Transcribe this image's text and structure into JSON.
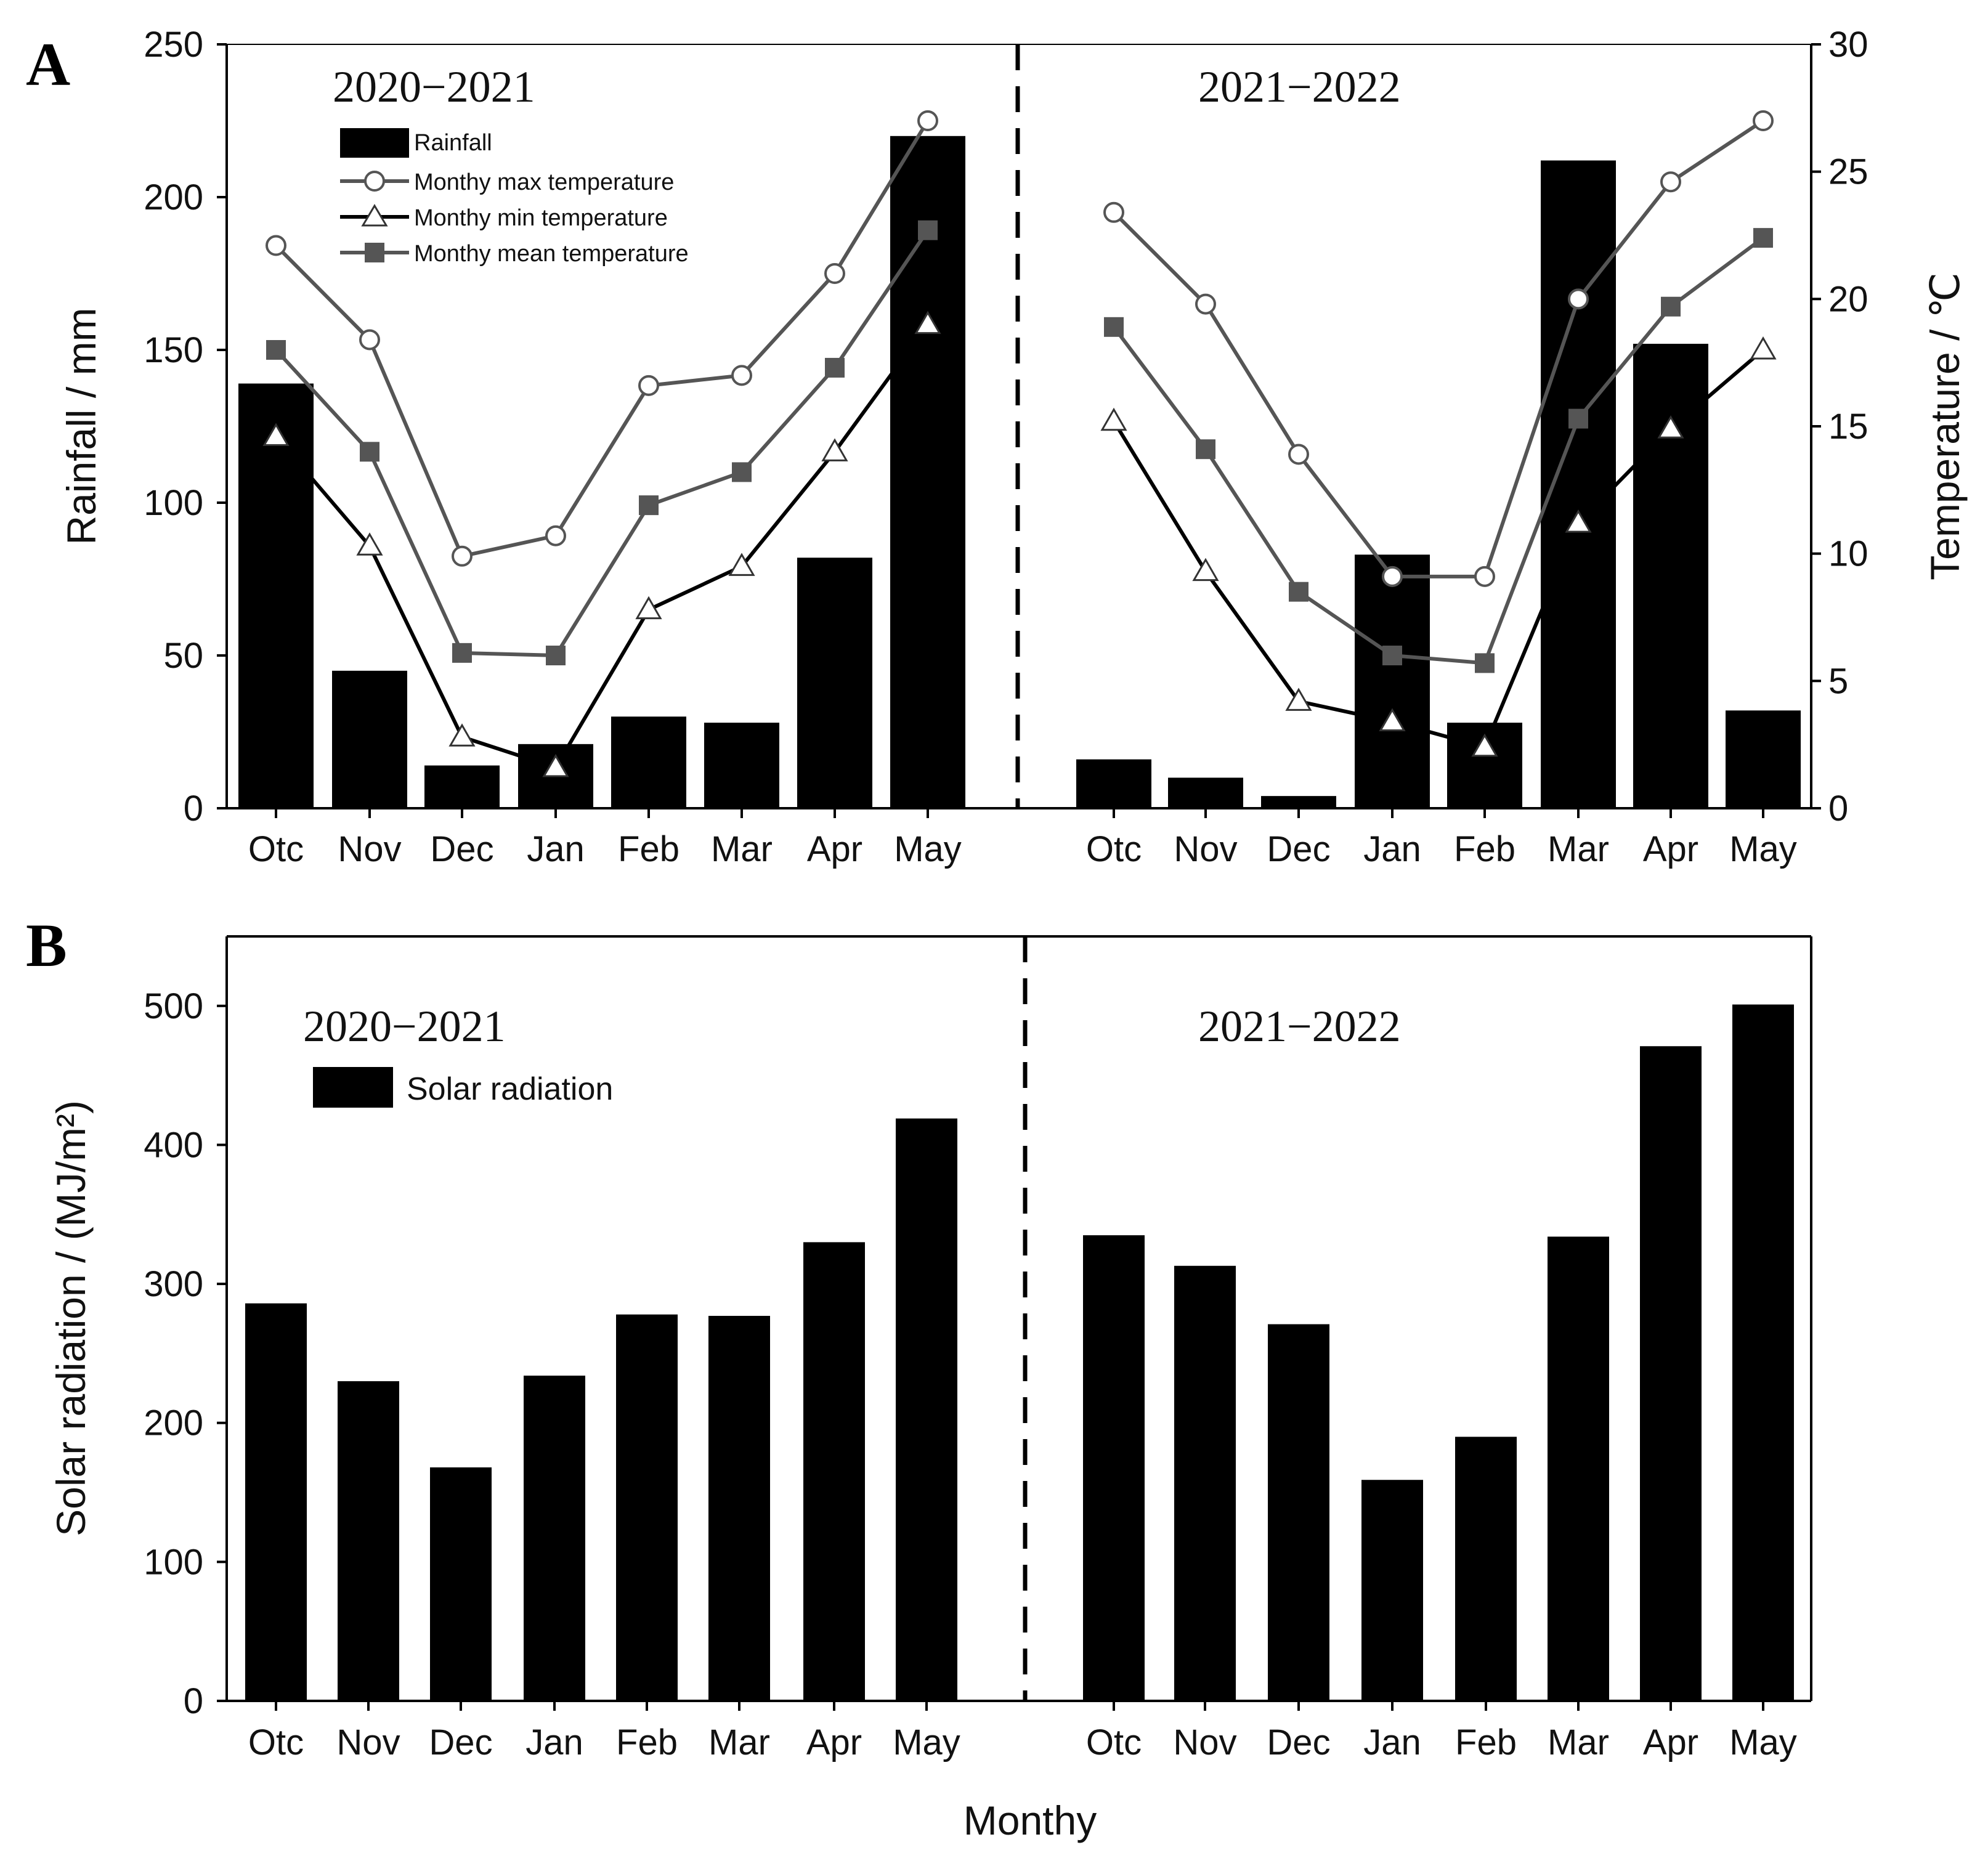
{
  "figure": {
    "panel_a_letter": "A",
    "panel_b_letter": "B",
    "shared_xlabel": "Monthy"
  },
  "colors": {
    "bar": "#000000",
    "line_max": "#555555",
    "line_min": "#000000",
    "line_mean": "#555555",
    "marker_mean": "#555555"
  },
  "chart_data": [
    {
      "id": "panel-a",
      "type": "bar+line",
      "title": "",
      "xlabel": "",
      "ylabel": "Rainfall / mm",
      "y2label": "Temperature / ℃",
      "ylim": [
        0,
        250
      ],
      "y2lim": [
        0,
        30
      ],
      "yticks": [
        "0",
        "50",
        "100",
        "150",
        "200",
        "250"
      ],
      "y2ticks": [
        "0",
        "5",
        "10",
        "15",
        "20",
        "25",
        "30"
      ],
      "seasons": [
        "2020−2021",
        "2021−2022"
      ],
      "categories": [
        "Otc",
        "Nov",
        "Dec",
        "Jan",
        "Feb",
        "Mar",
        "Apr",
        "May"
      ],
      "legend": {
        "rainfall": "Rainfall",
        "max": "Monthy max temperature",
        "min": "Monthy min temperature",
        "mean": "Monthy mean temperature"
      },
      "series": [
        {
          "name": "Rainfall",
          "axis": "left",
          "kind": "bar",
          "values": [
            [
              139,
              45,
              14,
              21,
              30,
              28,
              82,
              220
            ],
            [
              16,
              10,
              4,
              83,
              28,
              212,
              152,
              32
            ]
          ]
        },
        {
          "name": "Monthy max temperature",
          "axis": "right",
          "kind": "line",
          "marker": "circle",
          "values": [
            [
              22.1,
              18.4,
              9.9,
              10.7,
              16.6,
              17.0,
              21.0,
              27.0
            ],
            [
              23.4,
              19.8,
              13.9,
              9.1,
              9.1,
              20.0,
              24.6,
              27.0
            ]
          ]
        },
        {
          "name": "Monthy min temperature",
          "axis": "right",
          "kind": "line",
          "marker": "triangle",
          "values": [
            [
              14.6,
              10.3,
              2.8,
              1.6,
              7.8,
              9.5,
              14.0,
              19.0
            ],
            [
              15.2,
              9.3,
              4.2,
              3.4,
              2.4,
              11.2,
              14.9,
              18.0
            ]
          ]
        },
        {
          "name": "Monthy mean temperature",
          "axis": "right",
          "kind": "line",
          "marker": "square",
          "values": [
            [
              18.0,
              14.0,
              6.1,
              6.0,
              11.9,
              13.2,
              17.3,
              22.7
            ],
            [
              18.9,
              14.1,
              8.5,
              6.0,
              5.7,
              15.3,
              19.7,
              22.4
            ]
          ]
        }
      ]
    },
    {
      "id": "panel-b",
      "type": "bar",
      "title": "",
      "xlabel": "Monthy",
      "ylabel": "Solar radiation / (MJ/m²)",
      "ylim": [
        0,
        550
      ],
      "yticks": [
        "0",
        "100",
        "200",
        "300",
        "400",
        "500"
      ],
      "seasons": [
        "2020−2021",
        "2021−2022"
      ],
      "categories": [
        "Otc",
        "Nov",
        "Dec",
        "Jan",
        "Feb",
        "Mar",
        "Apr",
        "May"
      ],
      "legend": {
        "solar": "Solar radiation"
      },
      "series": [
        {
          "name": "Solar radiation",
          "kind": "bar",
          "values": [
            [
              286,
              230,
              168,
              234,
              278,
              277,
              330,
              419
            ],
            [
              335,
              313,
              271,
              159,
              190,
              334,
              471,
              501
            ]
          ]
        }
      ]
    }
  ]
}
